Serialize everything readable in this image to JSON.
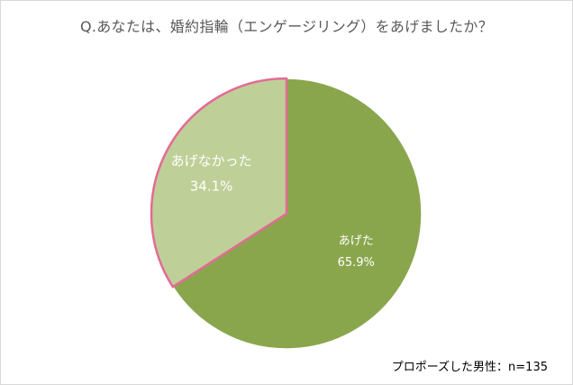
{
  "chart_data": {
    "type": "pie",
    "title": "Q.あなたは、婚約指輪（エンゲージリング）をあげましたか？",
    "slices": [
      {
        "label": "あげた",
        "value": 65.9,
        "value_label": "65.9%",
        "color": "#8aa64d",
        "label_color": "#ffffff"
      },
      {
        "label": "あげなかった",
        "value": 34.1,
        "value_label": "34.1%",
        "color": "#bfcf98",
        "label_color": "#ffffff",
        "outline": "#e26b95"
      }
    ],
    "start": "12 o'clock",
    "direction": "clockwise"
  },
  "footnote": "プロポーズした男性：n=135"
}
